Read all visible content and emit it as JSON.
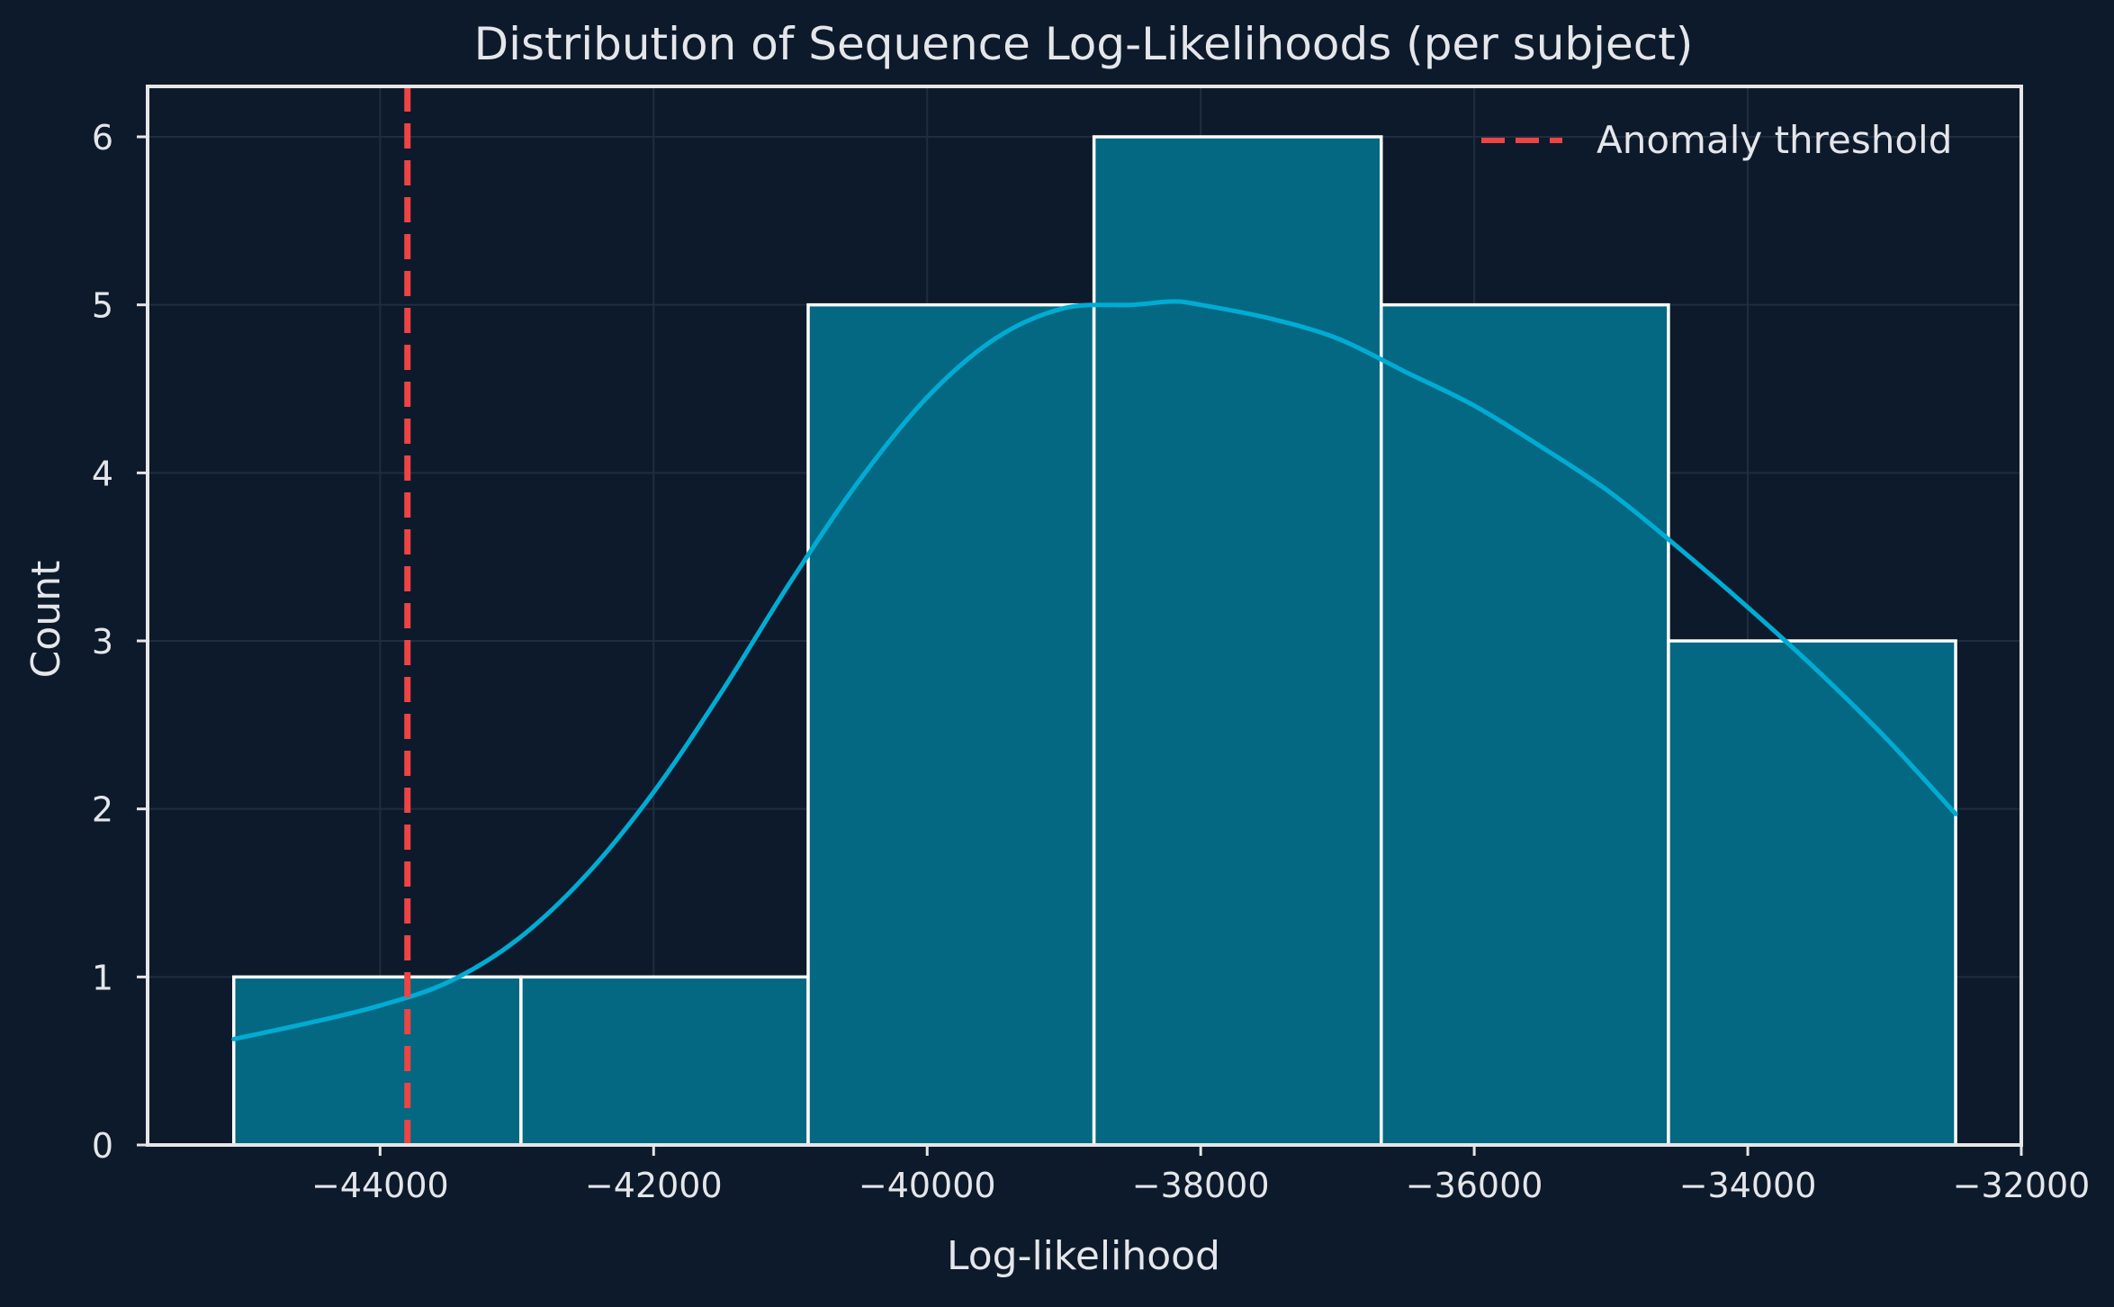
{
  "chart_data": {
    "type": "bar",
    "title": "Distribution of Sequence Log-Likelihoods (per subject)",
    "xlabel": "Log-likelihood",
    "ylabel": "Count",
    "xlim": [
      -45700,
      -32000
    ],
    "ylim": [
      0,
      6.3
    ],
    "grid": true,
    "legend_placement": "top-right",
    "x_ticks": [
      -44000,
      -42000,
      -40000,
      -38000,
      -36000,
      -34000,
      -32000
    ],
    "x_tick_labels": [
      "−44000",
      "−42000",
      "−40000",
      "−38000",
      "−36000",
      "−34000",
      "−32000"
    ],
    "y_ticks": [
      0,
      1,
      2,
      3,
      4,
      5,
      6
    ],
    "y_tick_labels": [
      "0",
      "1",
      "2",
      "3",
      "4",
      "5",
      "6"
    ],
    "bins": [
      {
        "start": -45070,
        "end": -42970,
        "count": 1
      },
      {
        "start": -42970,
        "end": -40870,
        "count": 1
      },
      {
        "start": -40870,
        "end": -38780,
        "count": 5
      },
      {
        "start": -38780,
        "end": -36680,
        "count": 6
      },
      {
        "start": -36680,
        "end": -34580,
        "count": 5
      },
      {
        "start": -34580,
        "end": -32480,
        "count": 3
      }
    ],
    "kde": {
      "x": [
        -45070,
        -44500,
        -44000,
        -43500,
        -43000,
        -42500,
        -42000,
        -41500,
        -41000,
        -40500,
        -40000,
        -39500,
        -39000,
        -38500,
        -38200,
        -38000,
        -37500,
        -37000,
        -36500,
        -36000,
        -35500,
        -35000,
        -34500,
        -34000,
        -33500,
        -33000,
        -32480
      ],
      "y": [
        0.63,
        0.73,
        0.83,
        0.97,
        1.22,
        1.6,
        2.1,
        2.7,
        3.35,
        3.95,
        4.45,
        4.8,
        4.98,
        5.0,
        5.02,
        5.0,
        4.92,
        4.8,
        4.6,
        4.4,
        4.15,
        3.88,
        3.55,
        3.2,
        2.83,
        2.43,
        1.97
      ]
    },
    "threshold": {
      "name": "Anomaly threshold",
      "x": -43800
    },
    "colors": {
      "background": "#0d1a2b",
      "bar_fill": "#046882",
      "bar_edge": "#ffffff",
      "kde_line": "#00acd4",
      "threshold": "#ee4444",
      "grid": "#1f2d3f",
      "axis": "#e6e6e6",
      "text": "#e4e6ea"
    }
  }
}
